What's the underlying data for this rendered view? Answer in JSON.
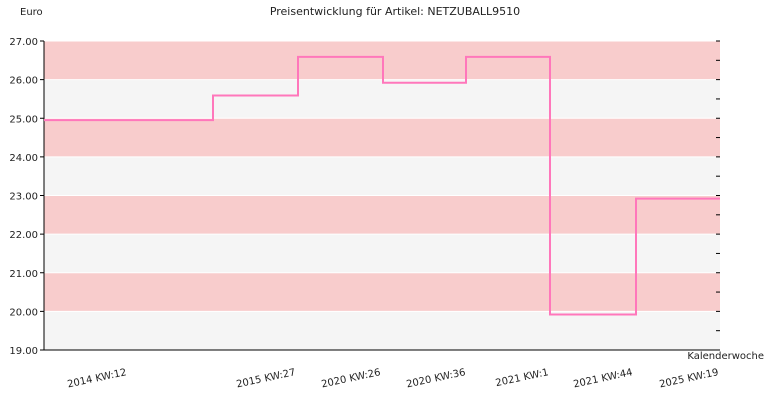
{
  "chart_data": {
    "type": "line",
    "step": "post",
    "title": "Preisentwicklung für Artikel: NETZUBALL9510",
    "ylabel": "Euro",
    "xlabel": "Kalenderwoche",
    "ylim": [
      19.0,
      27.0
    ],
    "yticks": [
      "19.00",
      "20.00",
      "21.00",
      "22.00",
      "23.00",
      "24.00",
      "25.00",
      "26.00",
      "27.00"
    ],
    "categories": [
      "2014 KW:12",
      "2015 KW:27",
      "2020 KW:26",
      "2020 KW:36",
      "2021 KW:1",
      "2021 KW:44",
      "2025 KW:19"
    ],
    "series": [
      {
        "values": [
          24.95,
          25.59,
          26.59,
          25.92,
          26.59,
          19.92,
          22.92
        ]
      }
    ],
    "colors": {
      "line": "#ff77bb",
      "band_pink": "#f8cccc",
      "band_light": "#f5f5f5",
      "axis": "#000000"
    }
  }
}
